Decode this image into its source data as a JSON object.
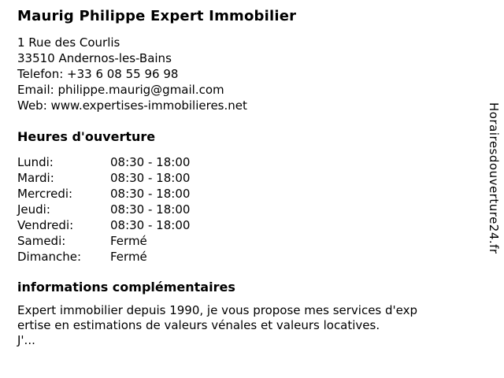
{
  "page": {
    "title": "Maurig Philippe Expert Immobilier",
    "background_color": "#ffffff",
    "text_color": "#000000"
  },
  "contact": {
    "address_line1": "1 Rue des Courlis",
    "address_line2": "33510 Andernos-les-Bains",
    "phone_line": "Telefon: +33 6 08 55 96 98",
    "email_line": "Email: philippe.maurig@gmail.com",
    "web_line": "Web: www.expertises-immobilieres.net"
  },
  "hours": {
    "heading": "Heures d'ouverture",
    "rows": [
      {
        "day": "Lundi:",
        "time": "08:30 - 18:00"
      },
      {
        "day": "Mardi:",
        "time": "08:30 - 18:00"
      },
      {
        "day": "Mercredi:",
        "time": "08:30 - 18:00"
      },
      {
        "day": "Jeudi:",
        "time": "08:30 - 18:00"
      },
      {
        "day": "Vendredi:",
        "time": "08:30 - 18:00"
      },
      {
        "day": "Samedi:",
        "time": "Fermé"
      },
      {
        "day": "Dimanche:",
        "time": "Fermé"
      }
    ]
  },
  "additional_info": {
    "heading": "informations complémentaires",
    "lines": [
      "Expert immobilier depuis 1990, je vous propose mes services d'exp",
      "ertise en estimations de valeurs vénales et valeurs locatives.",
      "J'..."
    ]
  },
  "watermark": {
    "text": "Horairesdouverture24.fr"
  }
}
